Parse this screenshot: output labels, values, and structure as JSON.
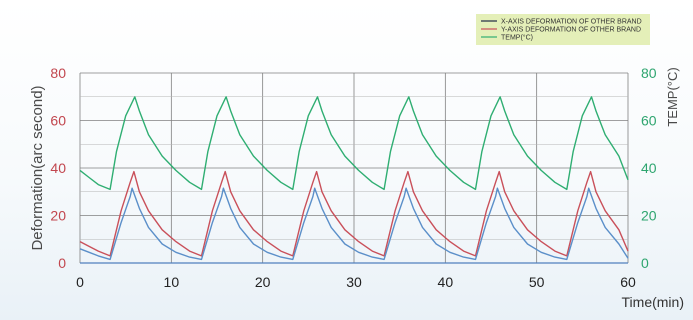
{
  "chart_data": {
    "type": "line",
    "xlabel": "Time(min)",
    "ylabel_left": "Deformation(arc second)",
    "ylabel_right": "TEMP(°C)",
    "xlim": [
      0,
      60
    ],
    "ylim_left": [
      0,
      80
    ],
    "ylim_right": [
      0,
      80
    ],
    "x_ticks": [
      "0",
      "10",
      "20",
      "30",
      "40",
      "50",
      "60"
    ],
    "y_ticks_left": [
      "0",
      "20",
      "40",
      "60",
      "80"
    ],
    "y_ticks_right": [
      "0",
      "20",
      "40",
      "60",
      "80"
    ],
    "grid": true,
    "legend_position": "top-right",
    "colors": {
      "x_deformation": "#1f2a44",
      "y_deformation": "#c9505a",
      "temp": "#2fae72",
      "blue_curve": "#5b8fc9",
      "legend_bg": "#e4efb8",
      "grid": "#808080"
    },
    "series": [
      {
        "name": "X-AXIS DEFORMATION OF OTHER BRAND",
        "axis": "left",
        "x": [
          0,
          60
        ],
        "values": [
          0,
          0
        ]
      },
      {
        "name": "Y-AXIS DEFORMATION OF OTHER BRAND",
        "axis": "left",
        "x": [
          0,
          1,
          2,
          3.3,
          4.5,
          5.5,
          5.9,
          6.5,
          7.5,
          9,
          10.5,
          12,
          13.3,
          14.5,
          15.5,
          15.9,
          16.5,
          17.5,
          19,
          20.5,
          22,
          23.3,
          24.5,
          25.5,
          25.9,
          26.5,
          27.5,
          29,
          30.5,
          32,
          33.3,
          34.5,
          35.5,
          35.9,
          36.5,
          37.5,
          39,
          40.5,
          42,
          43.3,
          44.5,
          45.5,
          45.9,
          46.5,
          47.5,
          49,
          50.5,
          52,
          53.3,
          54.5,
          55.5,
          55.9,
          56.5,
          57.5,
          59,
          60
        ],
        "values": [
          9,
          7,
          5,
          3,
          22,
          34,
          38.5,
          30,
          22,
          14,
          9,
          5,
          3,
          22,
          34,
          38.5,
          30,
          22,
          14,
          9,
          5,
          3,
          22,
          34,
          38.5,
          30,
          22,
          14,
          9,
          5,
          3,
          22,
          34,
          38.5,
          30,
          22,
          14,
          9,
          5,
          3,
          22,
          34,
          38.5,
          30,
          22,
          14,
          9,
          5,
          3,
          22,
          34,
          38.5,
          30,
          22,
          14,
          5
        ]
      },
      {
        "name": "",
        "axis": "left",
        "x": [
          0,
          1,
          2,
          3.3,
          4.5,
          5.5,
          5.7,
          6.5,
          7.5,
          9,
          10.5,
          12,
          13.3,
          14.5,
          15.5,
          15.7,
          16.5,
          17.5,
          19,
          20.5,
          22,
          23.3,
          24.5,
          25.5,
          25.7,
          26.5,
          27.5,
          29,
          30.5,
          32,
          33.3,
          34.5,
          35.5,
          35.7,
          36.5,
          37.5,
          39,
          40.5,
          42,
          43.3,
          44.5,
          45.5,
          45.7,
          46.5,
          47.5,
          49,
          50.5,
          52,
          53.3,
          54.5,
          55.5,
          55.7,
          56.5,
          57.5,
          59,
          60
        ],
        "values": [
          6,
          4.5,
          3,
          1.5,
          17,
          28,
          31.5,
          23,
          15,
          8,
          4.5,
          2.5,
          1.5,
          17,
          28,
          31.5,
          23,
          15,
          8,
          4.5,
          2.5,
          1.5,
          17,
          28,
          31.5,
          23,
          15,
          8,
          4.5,
          2.5,
          1.5,
          17,
          28,
          31.5,
          23,
          15,
          8,
          4.5,
          2.5,
          1.5,
          17,
          28,
          31.5,
          23,
          15,
          8,
          4.5,
          2.5,
          1.5,
          17,
          28,
          31.5,
          23,
          15,
          8,
          2
        ]
      },
      {
        "name": "TEMP(°C)",
        "axis": "right",
        "x": [
          0,
          1,
          2,
          3.3,
          4,
          5,
          6,
          6.5,
          7.5,
          9,
          10.5,
          12,
          13.3,
          14,
          15,
          16,
          16.5,
          17.5,
          19,
          20.5,
          22,
          23.3,
          24,
          25,
          26,
          26.5,
          27.5,
          29,
          30.5,
          32,
          33.3,
          34,
          35,
          36,
          36.5,
          37.5,
          39,
          40.5,
          42,
          43.3,
          44,
          45,
          46,
          46.5,
          47.5,
          49,
          50.5,
          52,
          53.3,
          54,
          55,
          56,
          56.5,
          57.5,
          59,
          60
        ],
        "values": [
          39,
          36,
          33,
          31,
          47,
          62,
          70,
          64,
          54,
          45,
          39,
          34,
          31,
          47,
          62,
          70,
          64,
          54,
          45,
          39,
          34,
          31,
          47,
          62,
          70,
          64,
          54,
          45,
          39,
          34,
          31,
          47,
          62,
          70,
          64,
          54,
          45,
          39,
          34,
          31,
          47,
          62,
          70,
          64,
          54,
          45,
          39,
          34,
          31,
          47,
          62,
          70,
          64,
          54,
          45,
          35
        ]
      }
    ]
  }
}
